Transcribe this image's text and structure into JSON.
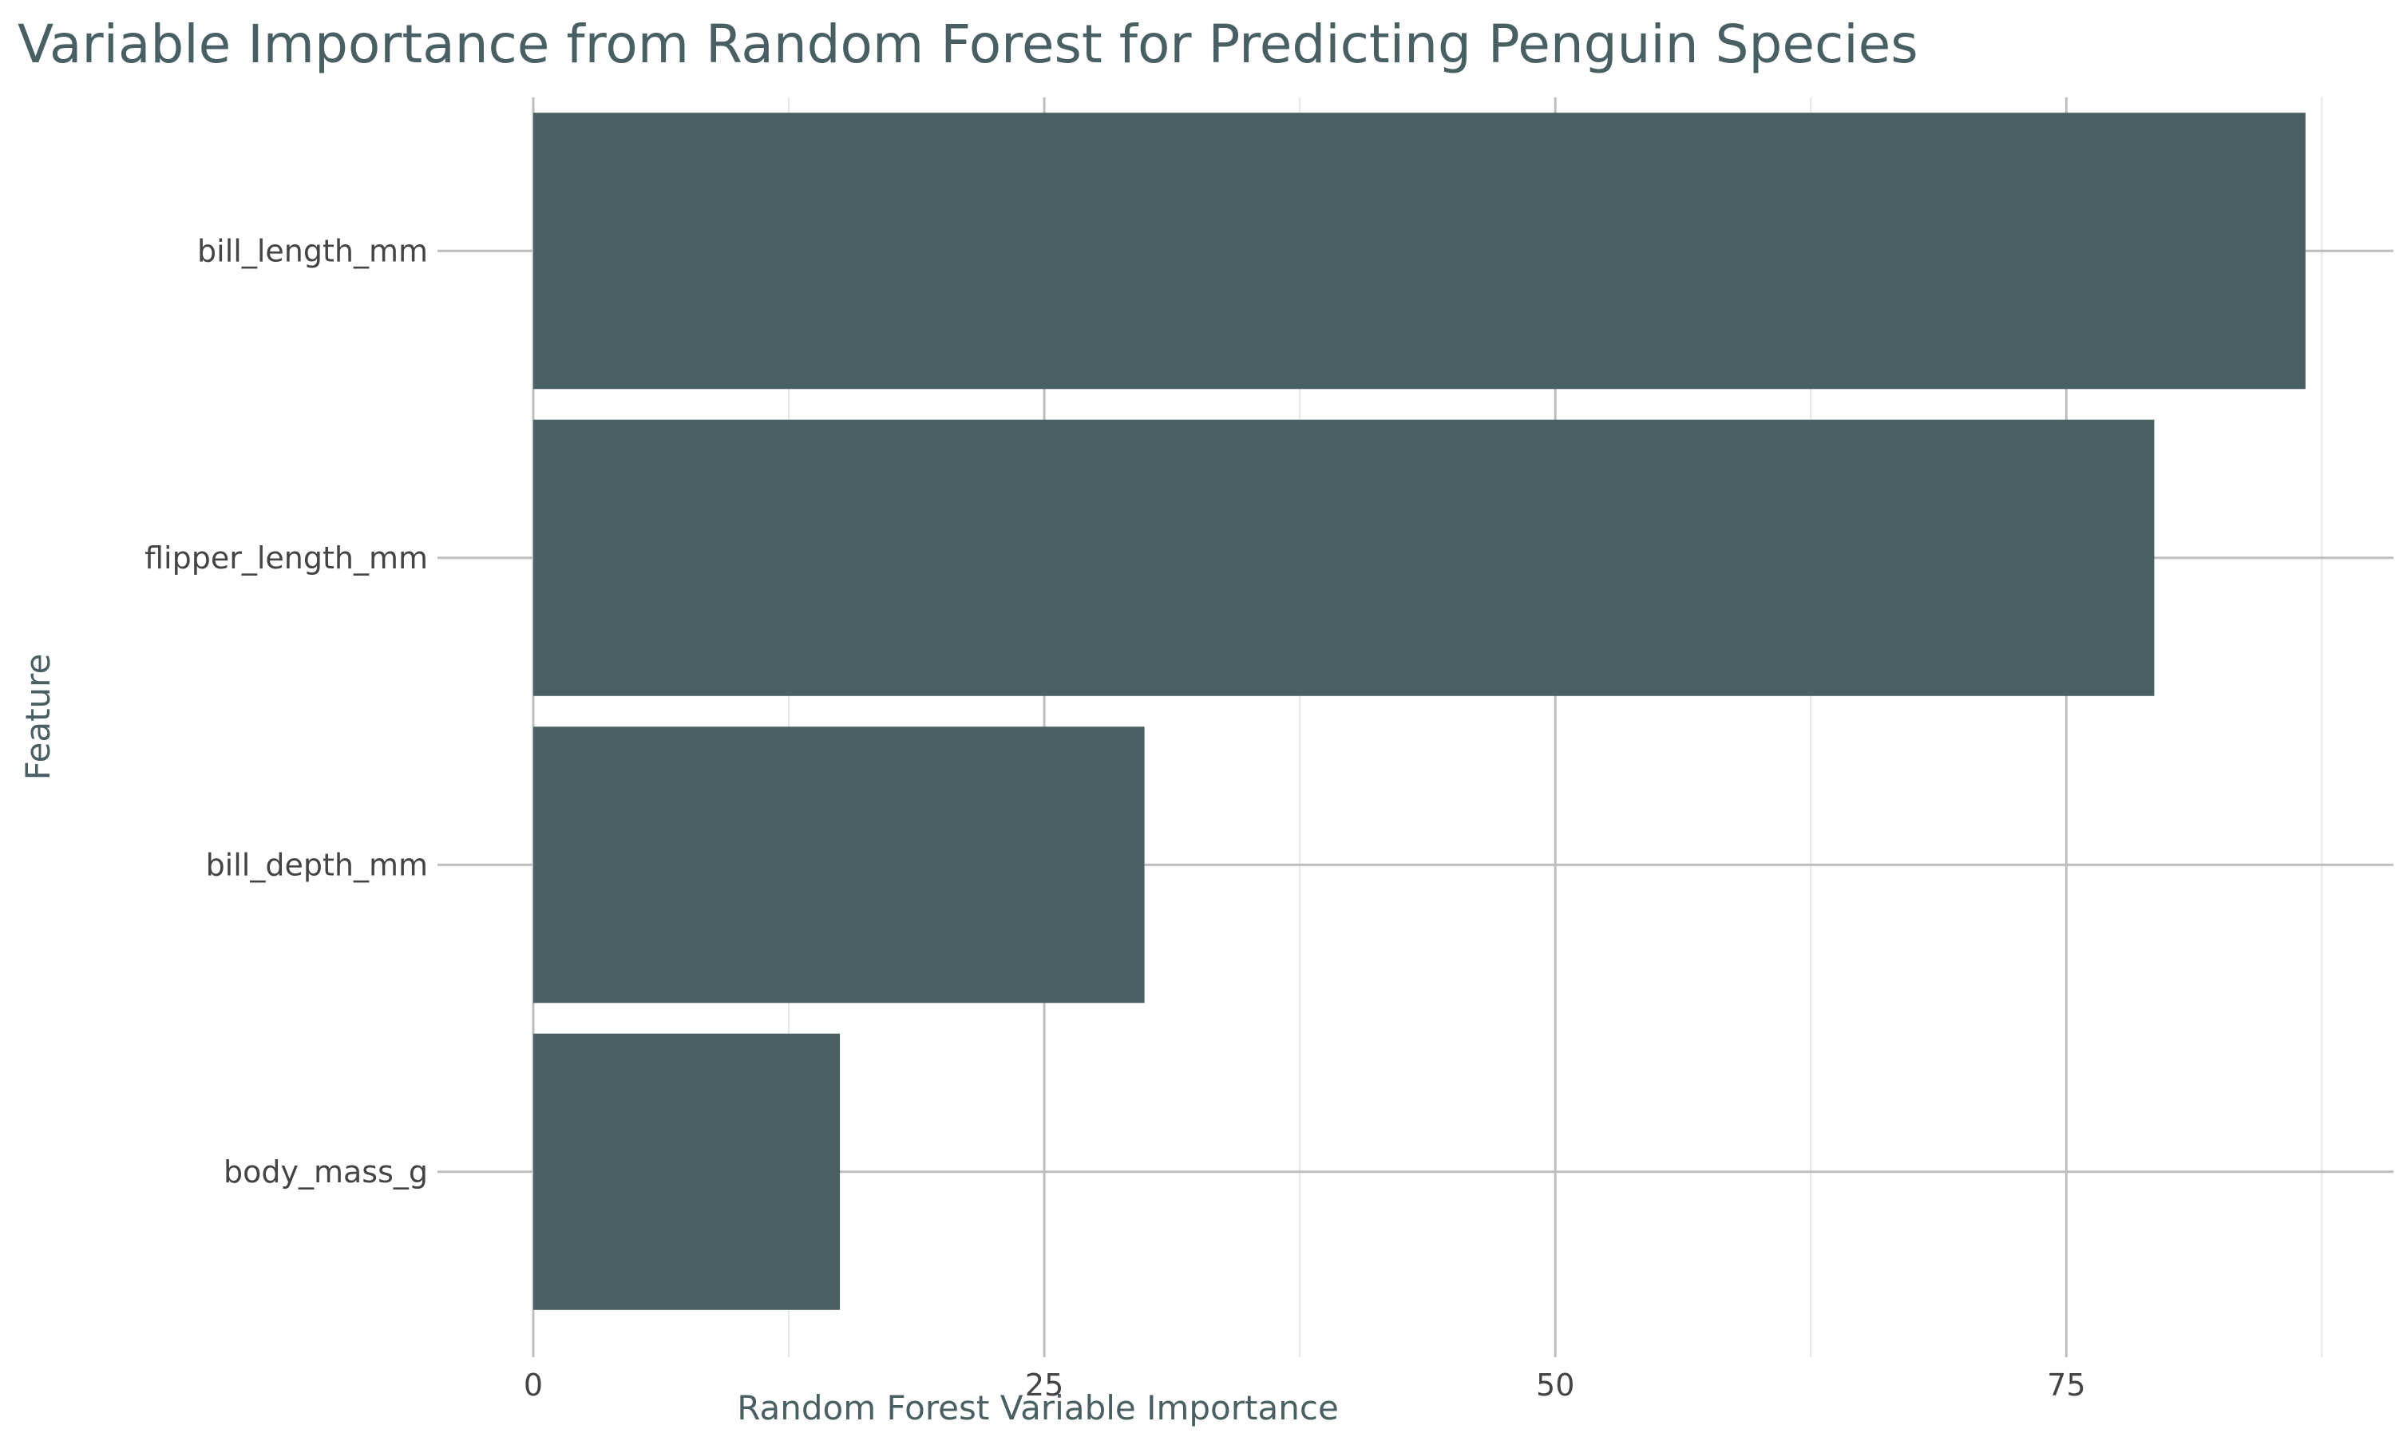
{
  "chart_data": {
    "type": "bar",
    "orientation": "horizontal",
    "title": "Variable Importance from Random Forest for Predicting Penguin Species",
    "xlabel": "Random Forest Variable Importance",
    "ylabel": "Feature",
    "categories": [
      "bill_length_mm",
      "flipper_length_mm",
      "bill_depth_mm",
      "body_mass_g"
    ],
    "values": [
      86.7,
      79.3,
      29.9,
      15.0
    ],
    "xlim": [
      0,
      91
    ],
    "xticks": [
      0,
      25,
      50,
      75
    ],
    "grid": true,
    "legend": "none",
    "bar_color": "#485f63",
    "grid_color": "#bdbdbd",
    "minor_grid_color": "#e6e6e6"
  }
}
